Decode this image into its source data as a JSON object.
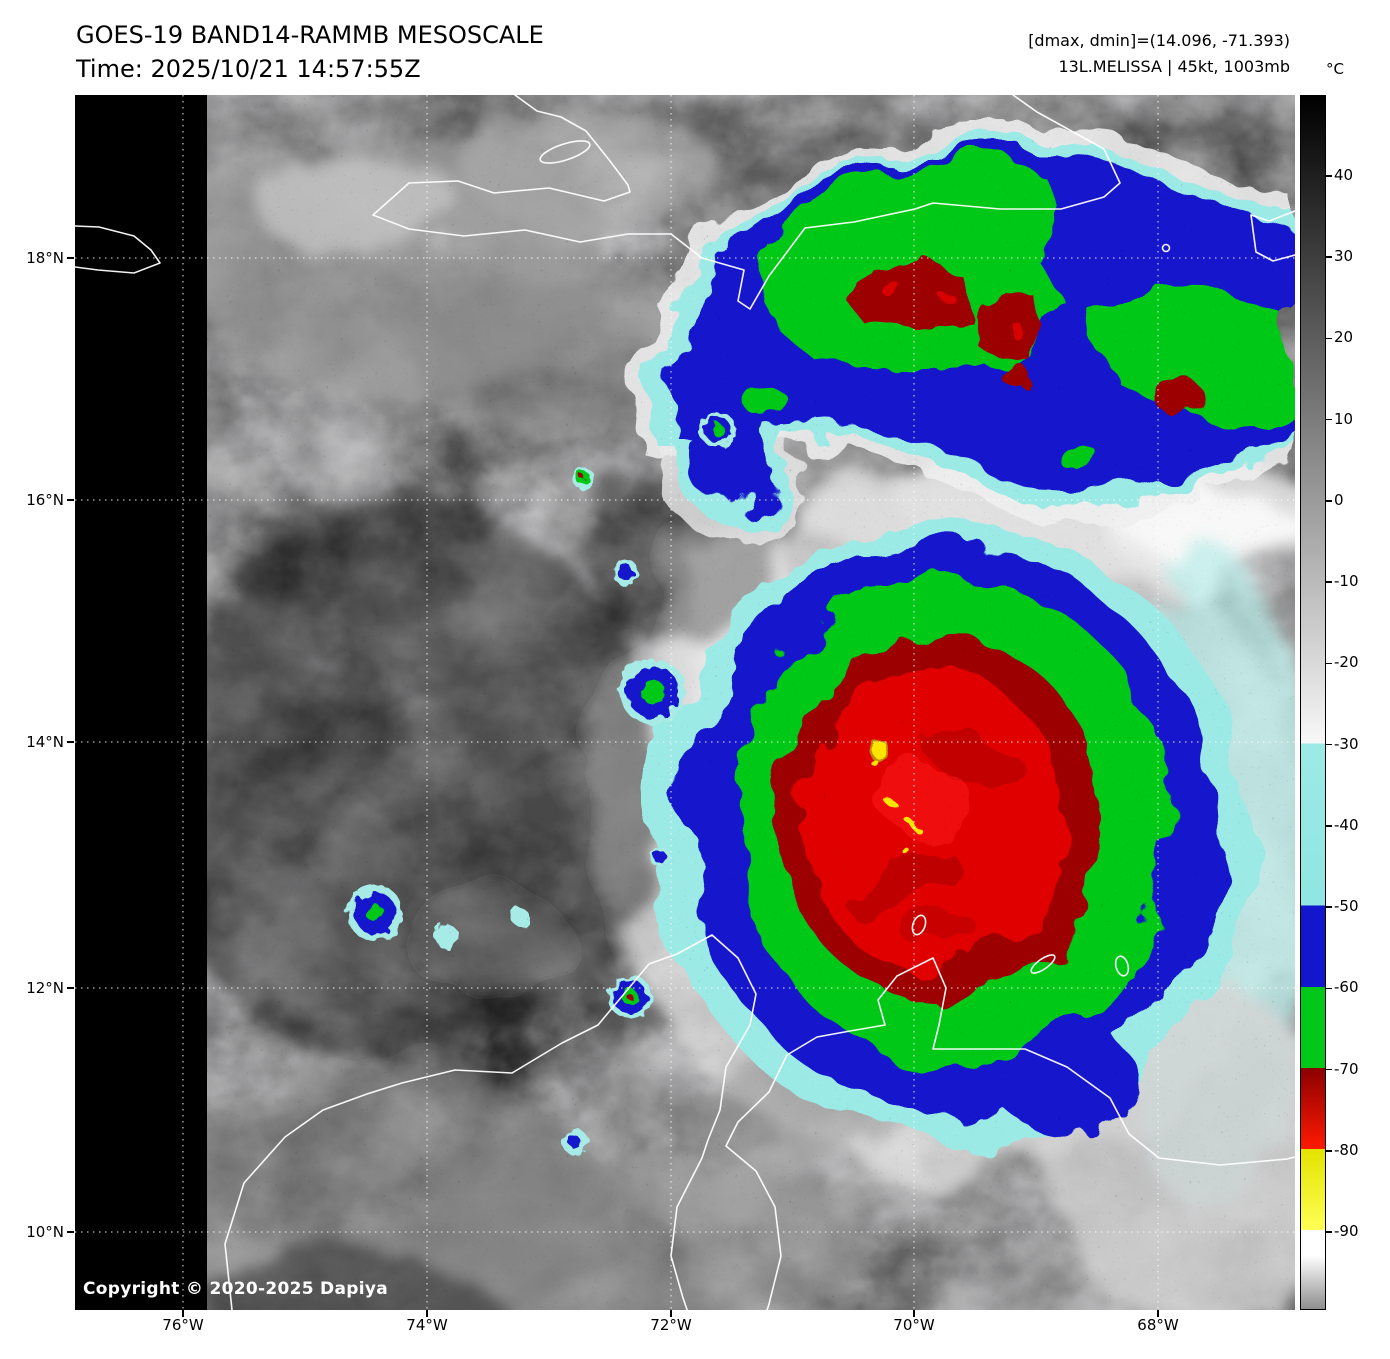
{
  "header": {
    "title": "GOES-19 BAND14-RAMMB MESOSCALE",
    "time": "Time: 2025/10/21 14:57:55Z",
    "dmax_dmin": "[dmax, dmin]=(14.096, -71.393)",
    "storm": "13L.MELISSA | 45kt, 1003mb"
  },
  "colorbar": {
    "unit": "°C",
    "ticks": [
      "40",
      "30",
      "20",
      "10",
      "0",
      "-10",
      "-20",
      "-30",
      "-40",
      "-50",
      "-60",
      "-70",
      "-80",
      "-90"
    ],
    "palette": [
      {
        "range": "40 to -30",
        "color": "#000000 to #ffffff grayscale"
      },
      {
        "range": "-30 to -50",
        "color": "#9ceae6"
      },
      {
        "range": "-50 to -60",
        "color": "#1216cc"
      },
      {
        "range": "-60 to -70",
        "color": "#00c818"
      },
      {
        "range": "-70 to -80",
        "color": "#8c0000 to #ff1a00"
      },
      {
        "range": "-80 to -90",
        "color": "#ffff00"
      },
      {
        "range": "below -90",
        "color": "#ffffff to #8e8e8e"
      }
    ]
  },
  "axes": {
    "lat": [
      "18°N",
      "16°N",
      "14°N",
      "12°N",
      "10°N"
    ],
    "lon": [
      "76°W",
      "74°W",
      "72°W",
      "70°W",
      "68°W"
    ]
  },
  "map": {
    "copyright": "Copyright © 2020-2025 Dapiya"
  }
}
